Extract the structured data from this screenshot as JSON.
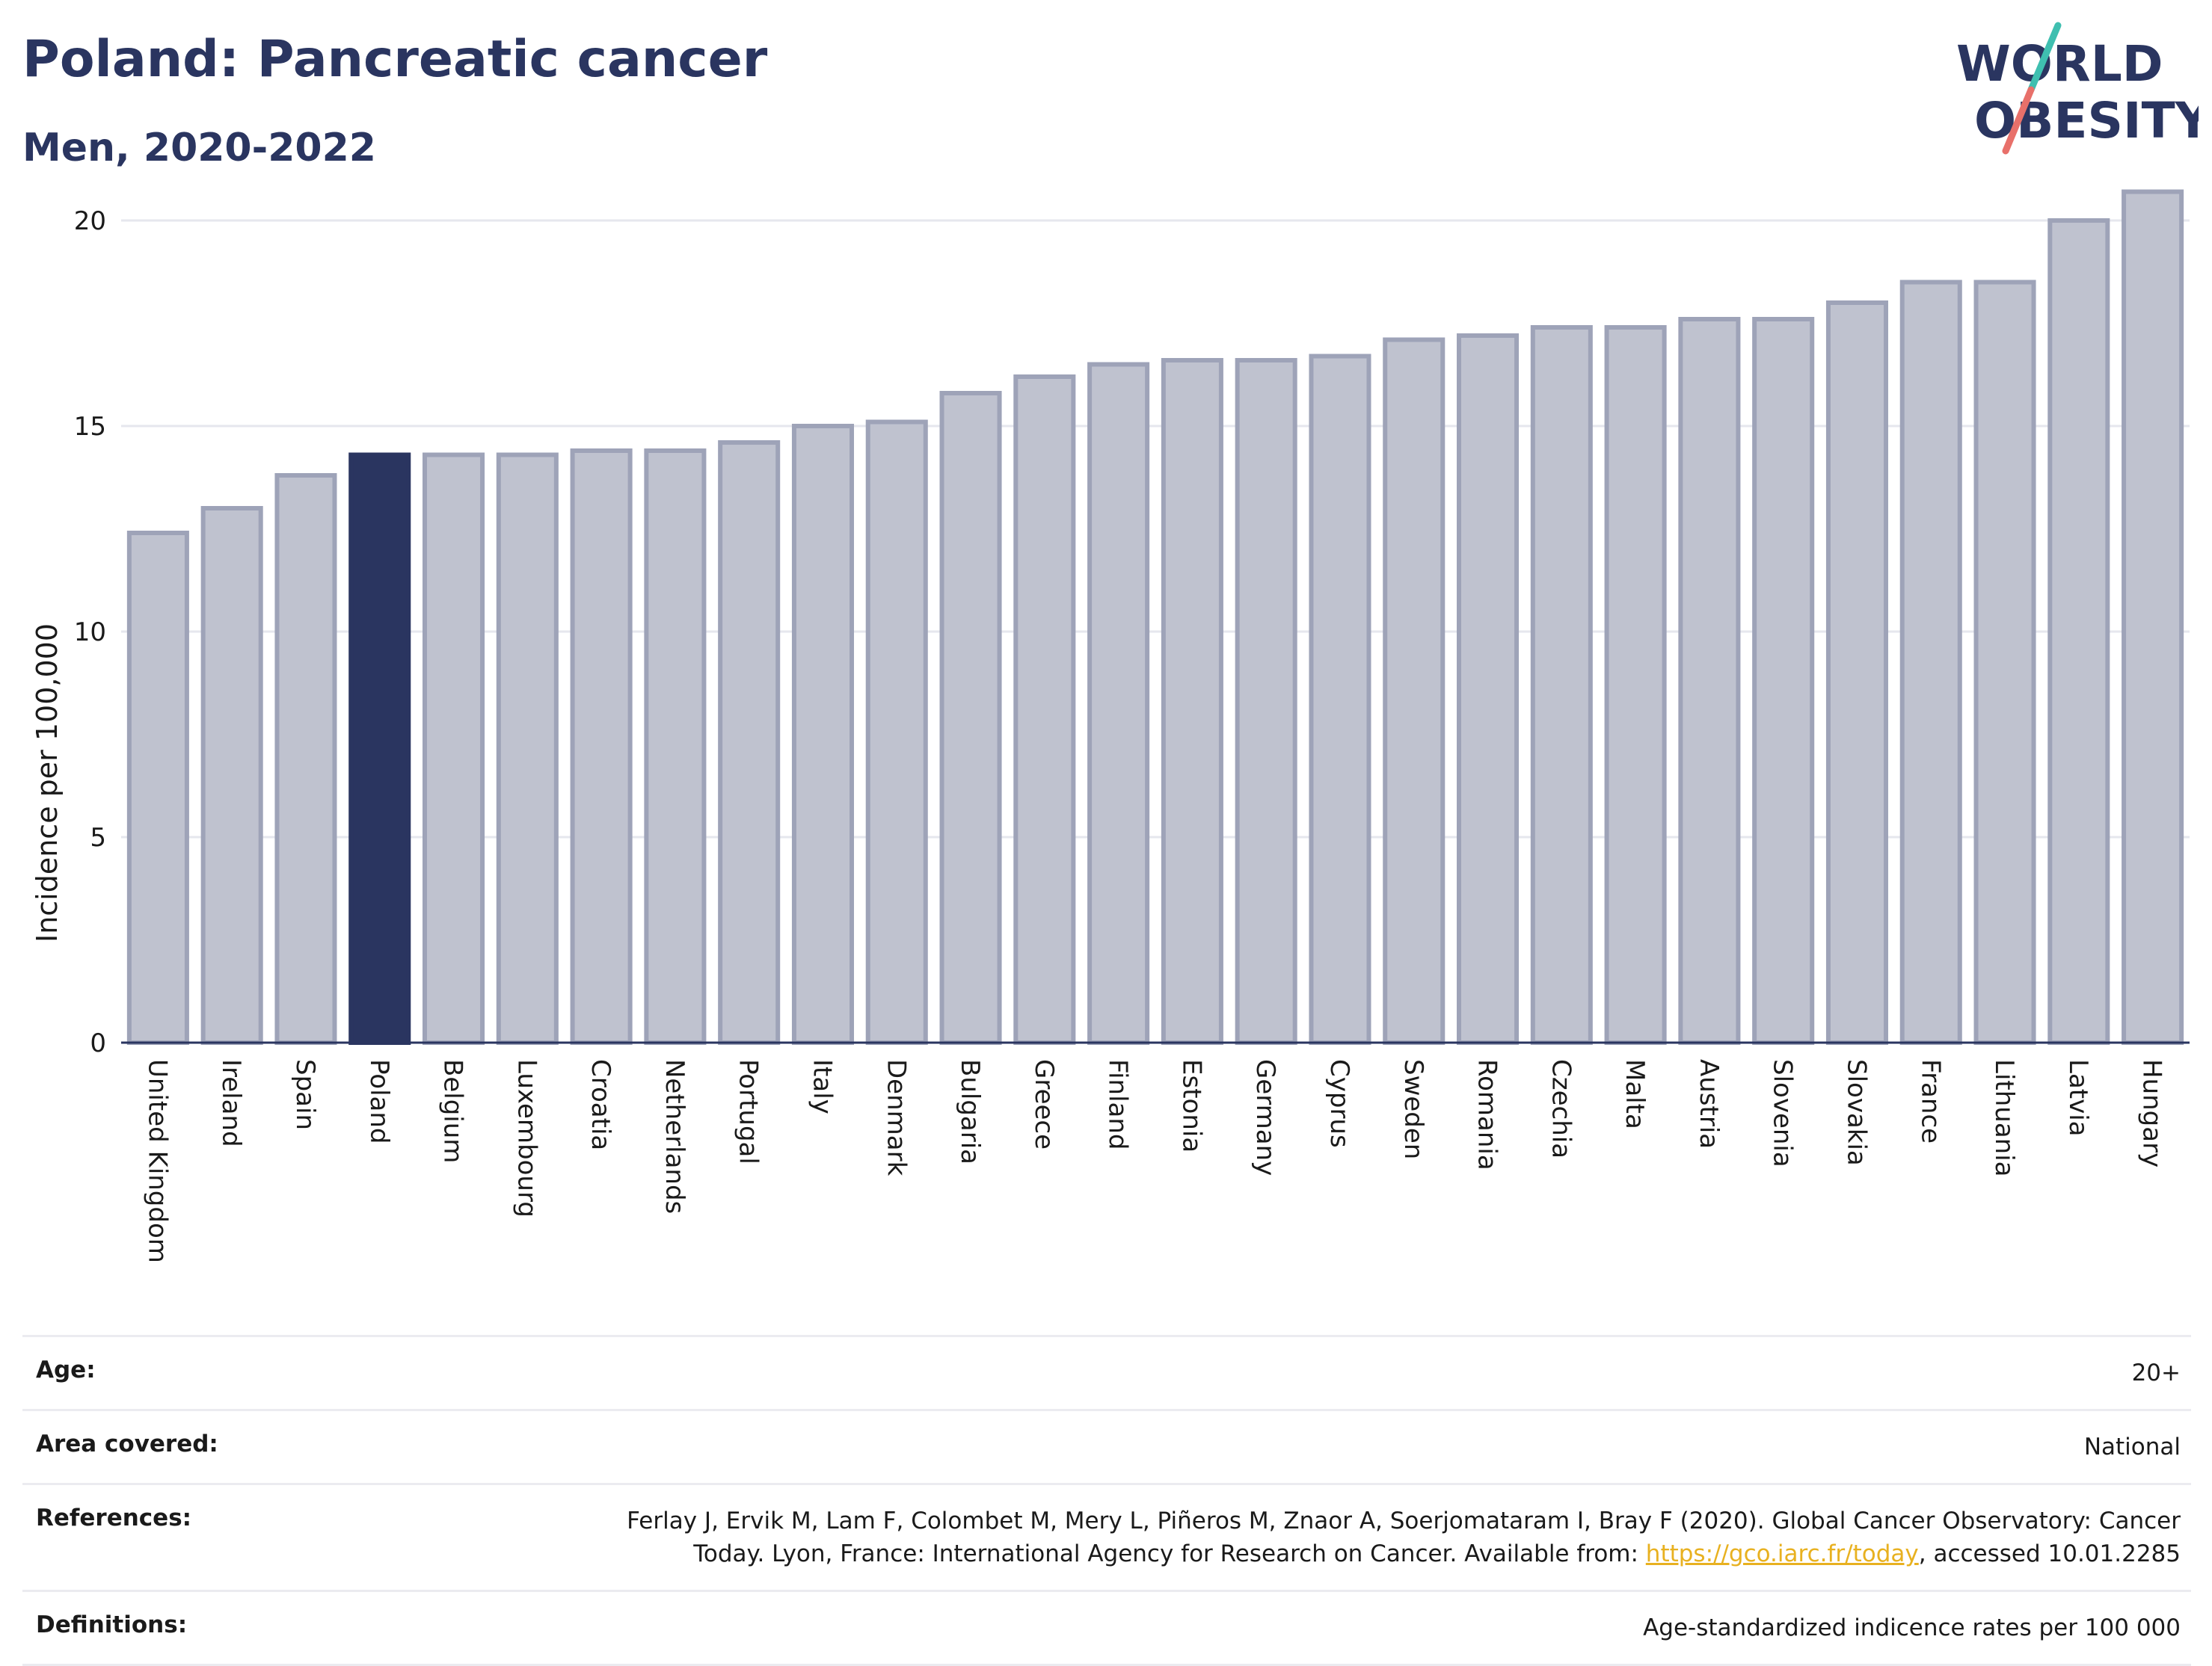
{
  "header": {
    "title": "Poland: Pancreatic cancer",
    "subtitle": "Men, 2020-2022"
  },
  "logo": {
    "line1": "WORLD",
    "line2": "OBESITY",
    "colors": {
      "text": "#2a3560",
      "slash_top": "#3fbfb0",
      "slash_bottom": "#e8706a"
    }
  },
  "chart_data": {
    "type": "bar",
    "title": "",
    "xlabel": "",
    "ylabel": "Incidence per 100,000",
    "ylim": [
      0,
      21
    ],
    "yticks": [
      0,
      5,
      10,
      15,
      20
    ],
    "grid": true,
    "highlight": "Poland",
    "colors": {
      "bar": "#bfc2cf",
      "bar_border": "#9ea3b8",
      "highlight": "#2a3560"
    },
    "categories": [
      "United Kingdom",
      "Ireland",
      "Spain",
      "Poland",
      "Belgium",
      "Luxembourg",
      "Croatia",
      "Netherlands",
      "Portugal",
      "Italy",
      "Denmark",
      "Bulgaria",
      "Greece",
      "Finland",
      "Estonia",
      "Germany",
      "Cyprus",
      "Sweden",
      "Romania",
      "Czechia",
      "Malta",
      "Austria",
      "Slovenia",
      "Slovakia",
      "France",
      "Lithuania",
      "Latvia",
      "Hungary"
    ],
    "values": [
      12.4,
      13.0,
      13.8,
      14.3,
      14.3,
      14.3,
      14.4,
      14.4,
      14.6,
      15.0,
      15.1,
      15.8,
      16.2,
      16.5,
      16.6,
      16.6,
      16.7,
      17.1,
      17.2,
      17.4,
      17.4,
      17.6,
      17.6,
      18.0,
      18.5,
      18.5,
      20.0,
      20.7
    ]
  },
  "info": [
    {
      "key": "Age:",
      "value": "20+"
    },
    {
      "key": "Area covered:",
      "value": "National"
    },
    {
      "key": "References:",
      "value_pre": "Ferlay J, Ervik M, Lam F, Colombet M, Mery L, Piñeros M, Znaor A, Soerjomataram I, Bray F (2020). Global Cancer Observatory: Cancer Today. Lyon, France: International Agency for Research on Cancer. Available from: ",
      "link": "https://gco.iarc.fr/today",
      "value_post": ", accessed 10.01.2285"
    },
    {
      "key": "Definitions:",
      "value": "Age-standardized indicence rates per 100 000"
    }
  ]
}
